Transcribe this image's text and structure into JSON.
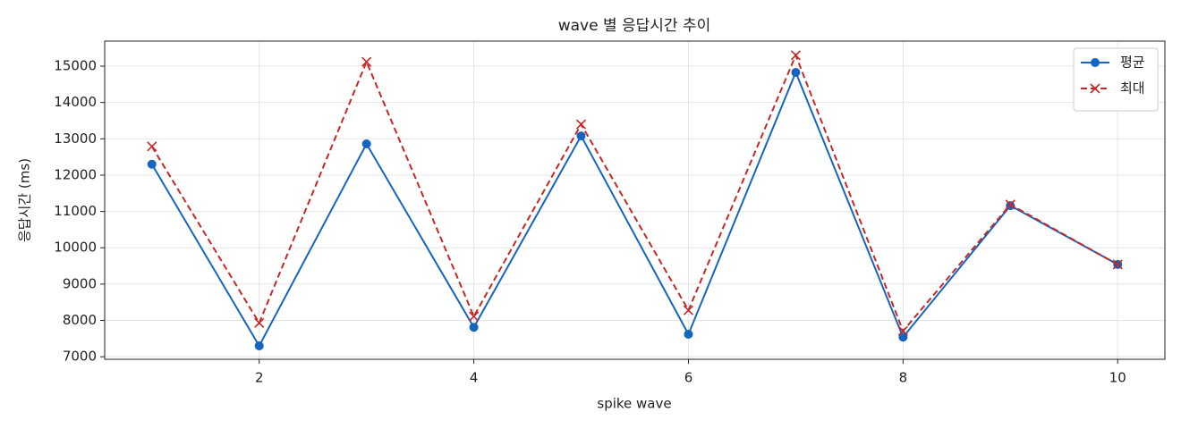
{
  "chart_data": {
    "type": "line",
    "title": "wave 별 응답시간 추이",
    "xlabel": "spike wave",
    "ylabel": "응답시간 (ms)",
    "x": [
      1,
      2,
      3,
      4,
      5,
      6,
      7,
      8,
      9,
      10
    ],
    "series": [
      {
        "name": "평균",
        "color": "#1565c0",
        "marker": "o",
        "linestyle": "solid",
        "values": [
          12300,
          7300,
          12860,
          7810,
          13080,
          7620,
          14830,
          7540,
          11160,
          9540
        ]
      },
      {
        "name": "최대",
        "color": "#c62828",
        "marker": "x",
        "linestyle": "dashed",
        "values": [
          12790,
          7930,
          15120,
          8110,
          13400,
          8280,
          15300,
          7710,
          11190,
          9540
        ]
      }
    ],
    "xlim": [
      0.56,
      10.44
    ],
    "xticks": [
      2,
      4,
      6,
      8,
      10
    ],
    "ylim": [
      6930,
      15690
    ],
    "yticks": [
      7000,
      8000,
      9000,
      10000,
      11000,
      12000,
      13000,
      14000,
      15000
    ],
    "grid": true,
    "legend": "upper right"
  }
}
